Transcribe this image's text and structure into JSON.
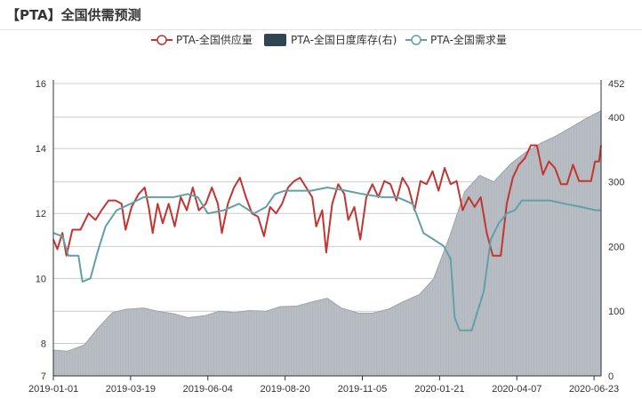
{
  "title": "【PTA】全国供需预测",
  "legend": {
    "supply": "PTA-全国供应量",
    "inventory": "PTA-全国日度库存(右)",
    "demand": "PTA-全国需求量"
  },
  "colors": {
    "supply": "#c23531",
    "demand": "#61a0a8",
    "inventory_fill": "#b3b8bf",
    "inventory_legend": "#2f4554",
    "grid": "#cccccc",
    "axis": "#333333"
  },
  "chart_data": {
    "type": "line",
    "x_ticks": [
      "2019-01-01",
      "2019-03-19",
      "2019-06-04",
      "2019-08-20",
      "2019-11-05",
      "2020-01-21",
      "2020-04-07",
      "2020-06-23"
    ],
    "y_left": {
      "ticks": [
        "16",
        "14",
        "12",
        "10",
        "8",
        "7"
      ],
      "range": [
        7,
        16
      ]
    },
    "y_right": {
      "ticks": [
        "452",
        "400",
        "300",
        "200",
        "100",
        "0"
      ],
      "range": [
        0,
        452
      ]
    },
    "series": [
      {
        "name": "PTA-全国供应量",
        "axis": "left",
        "type": "line",
        "values": [
          {
            "x": "2019-01-01",
            "y": 11.2
          },
          {
            "x": "2019-01-05",
            "y": 10.9
          },
          {
            "x": "2019-01-10",
            "y": 11.4
          },
          {
            "x": "2019-01-14",
            "y": 10.7
          },
          {
            "x": "2019-01-20",
            "y": 11.5
          },
          {
            "x": "2019-01-28",
            "y": 11.5
          },
          {
            "x": "2019-02-05",
            "y": 12.0
          },
          {
            "x": "2019-02-12",
            "y": 11.8
          },
          {
            "x": "2019-02-18",
            "y": 12.1
          },
          {
            "x": "2019-02-25",
            "y": 12.4
          },
          {
            "x": "2019-03-04",
            "y": 12.4
          },
          {
            "x": "2019-03-10",
            "y": 12.3
          },
          {
            "x": "2019-03-14",
            "y": 11.5
          },
          {
            "x": "2019-03-20",
            "y": 12.2
          },
          {
            "x": "2019-03-27",
            "y": 12.6
          },
          {
            "x": "2019-04-02",
            "y": 12.8
          },
          {
            "x": "2019-04-06",
            "y": 12.2
          },
          {
            "x": "2019-04-10",
            "y": 11.4
          },
          {
            "x": "2019-04-15",
            "y": 12.3
          },
          {
            "x": "2019-04-20",
            "y": 11.7
          },
          {
            "x": "2019-04-26",
            "y": 12.3
          },
          {
            "x": "2019-05-02",
            "y": 11.6
          },
          {
            "x": "2019-05-08",
            "y": 12.5
          },
          {
            "x": "2019-05-14",
            "y": 12.1
          },
          {
            "x": "2019-05-20",
            "y": 12.8
          },
          {
            "x": "2019-05-26",
            "y": 12.1
          },
          {
            "x": "2019-06-02",
            "y": 12.3
          },
          {
            "x": "2019-06-08",
            "y": 12.8
          },
          {
            "x": "2019-06-14",
            "y": 12.3
          },
          {
            "x": "2019-06-18",
            "y": 11.4
          },
          {
            "x": "2019-06-24",
            "y": 12.3
          },
          {
            "x": "2019-06-30",
            "y": 12.8
          },
          {
            "x": "2019-07-06",
            "y": 13.1
          },
          {
            "x": "2019-07-12",
            "y": 12.5
          },
          {
            "x": "2019-07-18",
            "y": 12.0
          },
          {
            "x": "2019-07-24",
            "y": 11.9
          },
          {
            "x": "2019-07-30",
            "y": 11.3
          },
          {
            "x": "2019-08-05",
            "y": 12.2
          },
          {
            "x": "2019-08-11",
            "y": 12.0
          },
          {
            "x": "2019-08-17",
            "y": 12.3
          },
          {
            "x": "2019-08-23",
            "y": 12.8
          },
          {
            "x": "2019-08-29",
            "y": 13.0
          },
          {
            "x": "2019-09-04",
            "y": 13.1
          },
          {
            "x": "2019-09-10",
            "y": 12.8
          },
          {
            "x": "2019-09-16",
            "y": 12.5
          },
          {
            "x": "2019-09-20",
            "y": 11.6
          },
          {
            "x": "2019-09-26",
            "y": 12.1
          },
          {
            "x": "2019-09-30",
            "y": 10.8
          },
          {
            "x": "2019-10-06",
            "y": 12.3
          },
          {
            "x": "2019-10-12",
            "y": 12.9
          },
          {
            "x": "2019-10-18",
            "y": 12.6
          },
          {
            "x": "2019-10-22",
            "y": 11.8
          },
          {
            "x": "2019-10-28",
            "y": 12.2
          },
          {
            "x": "2019-11-03",
            "y": 11.2
          },
          {
            "x": "2019-11-09",
            "y": 12.5
          },
          {
            "x": "2019-11-15",
            "y": 12.9
          },
          {
            "x": "2019-11-21",
            "y": 12.5
          },
          {
            "x": "2019-11-27",
            "y": 13.0
          },
          {
            "x": "2019-12-03",
            "y": 12.9
          },
          {
            "x": "2019-12-09",
            "y": 12.4
          },
          {
            "x": "2019-12-15",
            "y": 13.1
          },
          {
            "x": "2019-12-21",
            "y": 12.8
          },
          {
            "x": "2019-12-27",
            "y": 12.1
          },
          {
            "x": "2020-01-02",
            "y": 13.0
          },
          {
            "x": "2020-01-08",
            "y": 12.9
          },
          {
            "x": "2020-01-14",
            "y": 13.3
          },
          {
            "x": "2020-01-20",
            "y": 12.7
          },
          {
            "x": "2020-01-26",
            "y": 13.4
          },
          {
            "x": "2020-02-01",
            "y": 12.9
          },
          {
            "x": "2020-02-07",
            "y": 13.0
          },
          {
            "x": "2020-02-13",
            "y": 12.1
          },
          {
            "x": "2020-02-19",
            "y": 12.5
          },
          {
            "x": "2020-02-25",
            "y": 12.2
          },
          {
            "x": "2020-03-02",
            "y": 12.5
          },
          {
            "x": "2020-03-08",
            "y": 11.4
          },
          {
            "x": "2020-03-14",
            "y": 10.7
          },
          {
            "x": "2020-03-22",
            "y": 10.7
          },
          {
            "x": "2020-03-28",
            "y": 12.3
          },
          {
            "x": "2020-04-03",
            "y": 13.1
          },
          {
            "x": "2020-04-09",
            "y": 13.5
          },
          {
            "x": "2020-04-15",
            "y": 13.7
          },
          {
            "x": "2020-04-21",
            "y": 14.1
          },
          {
            "x": "2020-04-27",
            "y": 14.1
          },
          {
            "x": "2020-05-03",
            "y": 13.2
          },
          {
            "x": "2020-05-09",
            "y": 13.6
          },
          {
            "x": "2020-05-15",
            "y": 13.4
          },
          {
            "x": "2020-05-21",
            "y": 12.9
          },
          {
            "x": "2020-05-27",
            "y": 12.9
          },
          {
            "x": "2020-06-02",
            "y": 13.5
          },
          {
            "x": "2020-06-08",
            "y": 13.0
          },
          {
            "x": "2020-06-14",
            "y": 13.0
          },
          {
            "x": "2020-06-20",
            "y": 13.0
          },
          {
            "x": "2020-06-24",
            "y": 13.6
          },
          {
            "x": "2020-06-28",
            "y": 13.6
          },
          {
            "x": "2020-06-30",
            "y": 14.1
          }
        ]
      },
      {
        "name": "PTA-全国日度库存(右)",
        "axis": "right",
        "type": "area",
        "values": [
          {
            "x": "2019-01-01",
            "y": 40
          },
          {
            "x": "2019-01-15",
            "y": 38
          },
          {
            "x": "2019-02-01",
            "y": 48
          },
          {
            "x": "2019-02-15",
            "y": 75
          },
          {
            "x": "2019-03-01",
            "y": 98
          },
          {
            "x": "2019-03-15",
            "y": 103
          },
          {
            "x": "2019-04-01",
            "y": 105
          },
          {
            "x": "2019-04-15",
            "y": 100
          },
          {
            "x": "2019-05-01",
            "y": 96
          },
          {
            "x": "2019-05-15",
            "y": 90
          },
          {
            "x": "2019-06-01",
            "y": 93
          },
          {
            "x": "2019-06-15",
            "y": 100
          },
          {
            "x": "2019-07-01",
            "y": 98
          },
          {
            "x": "2019-07-15",
            "y": 101
          },
          {
            "x": "2019-08-01",
            "y": 100
          },
          {
            "x": "2019-08-15",
            "y": 107
          },
          {
            "x": "2019-09-01",
            "y": 108
          },
          {
            "x": "2019-09-15",
            "y": 114
          },
          {
            "x": "2019-10-01",
            "y": 120
          },
          {
            "x": "2019-10-15",
            "y": 105
          },
          {
            "x": "2019-11-01",
            "y": 97
          },
          {
            "x": "2019-11-15",
            "y": 97
          },
          {
            "x": "2019-12-01",
            "y": 103
          },
          {
            "x": "2019-12-15",
            "y": 114
          },
          {
            "x": "2020-01-01",
            "y": 126
          },
          {
            "x": "2020-01-15",
            "y": 150
          },
          {
            "x": "2020-02-01",
            "y": 220
          },
          {
            "x": "2020-02-15",
            "y": 285
          },
          {
            "x": "2020-03-01",
            "y": 310
          },
          {
            "x": "2020-03-15",
            "y": 300
          },
          {
            "x": "2020-04-01",
            "y": 328
          },
          {
            "x": "2020-04-15",
            "y": 345
          },
          {
            "x": "2020-05-01",
            "y": 360
          },
          {
            "x": "2020-05-15",
            "y": 370
          },
          {
            "x": "2020-06-01",
            "y": 385
          },
          {
            "x": "2020-06-15",
            "y": 398
          },
          {
            "x": "2020-06-30",
            "y": 410
          }
        ]
      },
      {
        "name": "PTA-全国需求量",
        "axis": "left",
        "type": "line",
        "values": [
          {
            "x": "2019-01-01",
            "y": 11.4
          },
          {
            "x": "2019-01-10",
            "y": 11.3
          },
          {
            "x": "2019-01-16",
            "y": 10.7
          },
          {
            "x": "2019-01-26",
            "y": 10.7
          },
          {
            "x": "2019-01-30",
            "y": 9.9
          },
          {
            "x": "2019-02-07",
            "y": 10.0
          },
          {
            "x": "2019-02-14",
            "y": 10.8
          },
          {
            "x": "2019-02-22",
            "y": 11.6
          },
          {
            "x": "2019-03-05",
            "y": 12.1
          },
          {
            "x": "2019-03-19",
            "y": 12.3
          },
          {
            "x": "2019-04-01",
            "y": 12.5
          },
          {
            "x": "2019-04-15",
            "y": 12.5
          },
          {
            "x": "2019-05-01",
            "y": 12.5
          },
          {
            "x": "2019-05-15",
            "y": 12.6
          },
          {
            "x": "2019-05-25",
            "y": 12.5
          },
          {
            "x": "2019-06-04",
            "y": 12.0
          },
          {
            "x": "2019-06-20",
            "y": 12.1
          },
          {
            "x": "2019-07-05",
            "y": 12.3
          },
          {
            "x": "2019-07-20",
            "y": 12.0
          },
          {
            "x": "2019-08-01",
            "y": 12.2
          },
          {
            "x": "2019-08-10",
            "y": 12.6
          },
          {
            "x": "2019-08-20",
            "y": 12.7
          },
          {
            "x": "2019-09-15",
            "y": 12.7
          },
          {
            "x": "2019-10-01",
            "y": 12.8
          },
          {
            "x": "2019-10-20",
            "y": 12.7
          },
          {
            "x": "2019-11-05",
            "y": 12.6
          },
          {
            "x": "2019-11-25",
            "y": 12.5
          },
          {
            "x": "2019-12-10",
            "y": 12.5
          },
          {
            "x": "2019-12-25",
            "y": 12.3
          },
          {
            "x": "2020-01-05",
            "y": 11.4
          },
          {
            "x": "2020-01-15",
            "y": 11.2
          },
          {
            "x": "2020-01-25",
            "y": 11.0
          },
          {
            "x": "2020-02-01",
            "y": 10.6
          },
          {
            "x": "2020-02-05",
            "y": 8.8
          },
          {
            "x": "2020-02-10",
            "y": 8.4
          },
          {
            "x": "2020-02-22",
            "y": 8.4
          },
          {
            "x": "2020-02-28",
            "y": 9.0
          },
          {
            "x": "2020-03-05",
            "y": 9.6
          },
          {
            "x": "2020-03-12",
            "y": 11.2
          },
          {
            "x": "2020-03-20",
            "y": 11.7
          },
          {
            "x": "2020-03-28",
            "y": 12.0
          },
          {
            "x": "2020-04-05",
            "y": 12.1
          },
          {
            "x": "2020-04-12",
            "y": 12.4
          },
          {
            "x": "2020-04-25",
            "y": 12.4
          },
          {
            "x": "2020-05-10",
            "y": 12.4
          },
          {
            "x": "2020-05-25",
            "y": 12.3
          },
          {
            "x": "2020-06-10",
            "y": 12.2
          },
          {
            "x": "2020-06-25",
            "y": 12.1
          },
          {
            "x": "2020-06-30",
            "y": 12.1
          }
        ]
      }
    ]
  }
}
